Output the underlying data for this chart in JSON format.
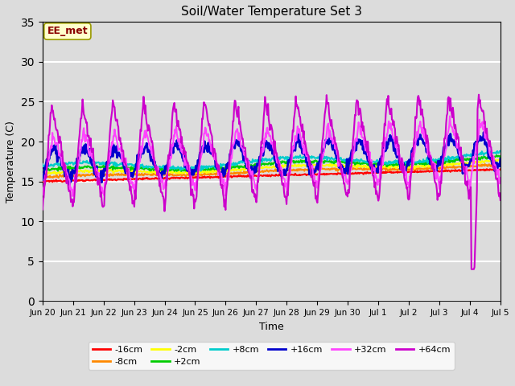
{
  "title": "Soil/Water Temperature Set 3",
  "xlabel": "Time",
  "ylabel": "Temperature (C)",
  "ylim": [
    0,
    35
  ],
  "yticks": [
    0,
    5,
    10,
    15,
    20,
    25,
    30,
    35
  ],
  "plot_bg": "#dcdcdc",
  "fig_bg": "#dcdcdc",
  "annotation_text": "EE_met",
  "annotation_bg": "#ffffcc",
  "annotation_edge": "#999900",
  "annotation_text_color": "#8b0000",
  "legend_entries": [
    "-16cm",
    "-8cm",
    "-2cm",
    "+2cm",
    "+8cm",
    "+16cm",
    "+32cm",
    "+64cm"
  ],
  "line_colors": [
    "#ff0000",
    "#ff8800",
    "#ffff00",
    "#00cc00",
    "#00cccc",
    "#0000cc",
    "#ff44ff",
    "#cc00cc"
  ],
  "line_widths": [
    1.5,
    1.5,
    1.5,
    1.5,
    1.5,
    2.0,
    1.5,
    1.5
  ],
  "xtick_labels": [
    "Jun 20",
    "Jun 21",
    "Jun 22",
    "Jun 23",
    "Jun 24",
    "Jun 25",
    "Jun 26",
    "Jun 27",
    "Jun 28",
    "Jun 29",
    "Jun 30",
    "Jul 1",
    "Jul 2",
    "Jul 3",
    "Jul 4",
    "Jul 5"
  ],
  "num_points": 744,
  "grid_color": "#ffffff",
  "grid_lw": 1.5
}
